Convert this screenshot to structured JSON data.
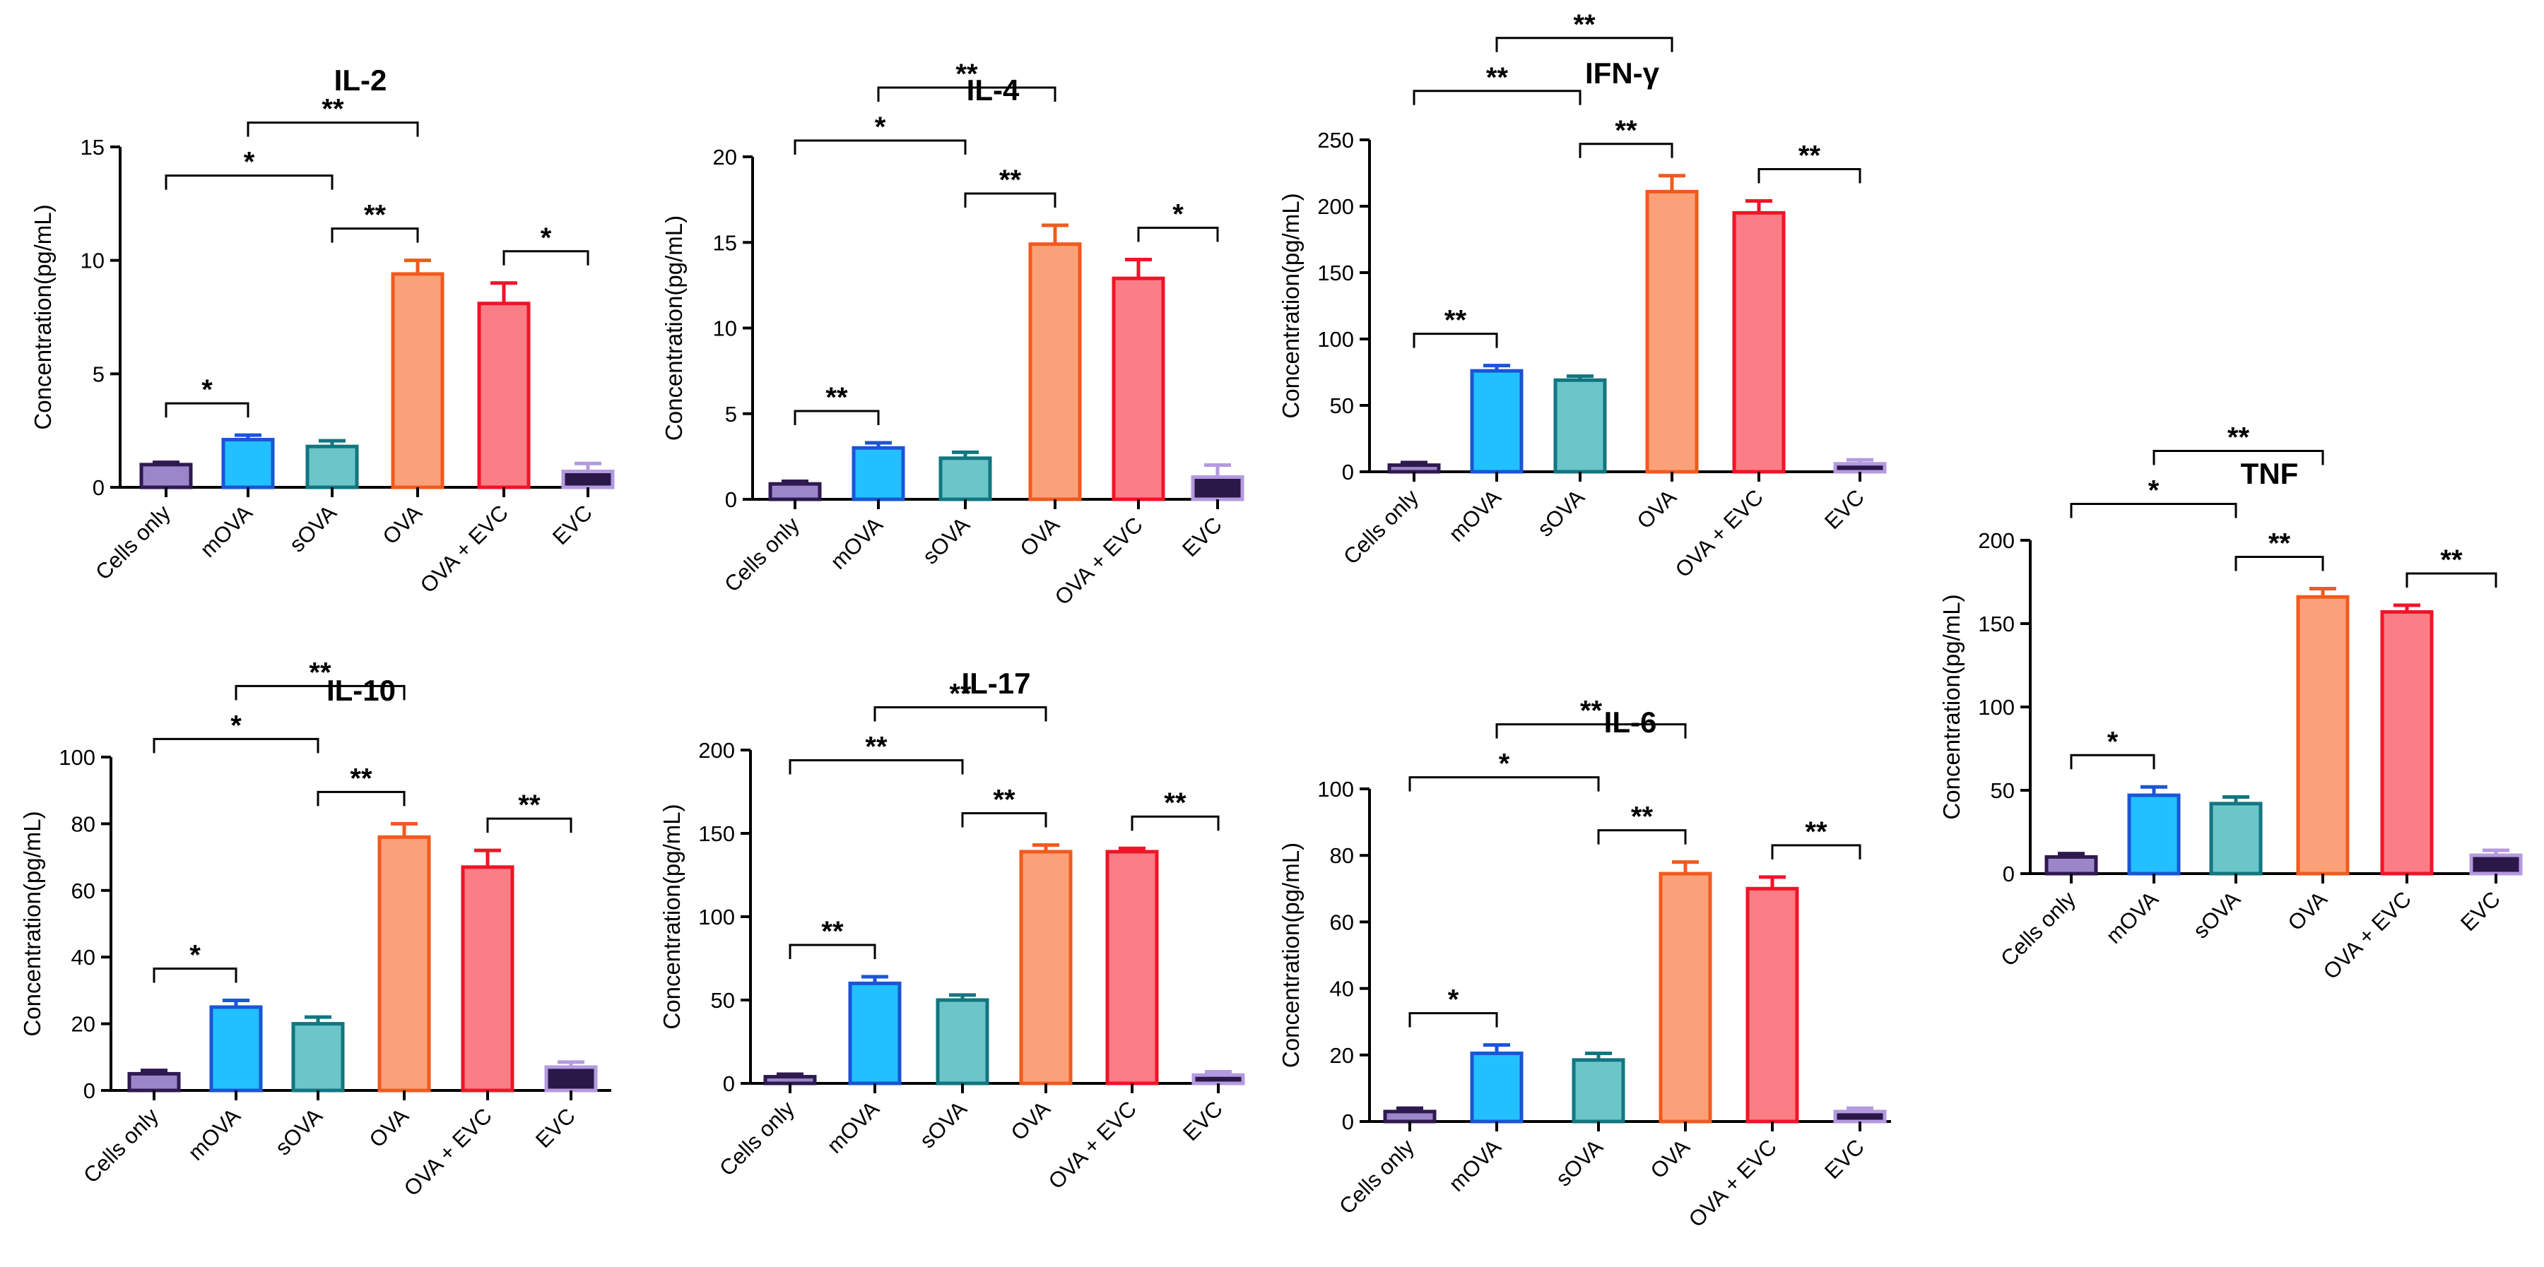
{
  "figure": {
    "ylabel": "Concentration(pg/mL)",
    "categories": [
      "Cells only",
      "mOVA",
      "sOVA",
      "OVA",
      "OVA + EVC",
      "EVC"
    ],
    "colors": {
      "fills": [
        "#9a86c8",
        "#22c0ff",
        "#6cc5c9",
        "#fba17a",
        "#fb7d86",
        "#2a1848"
      ],
      "edges": [
        "#2e1a4f",
        "#1a55d6",
        "#127680",
        "#f05a1e",
        "#f01428",
        "#b49ae0"
      ]
    }
  },
  "chart_data": [
    {
      "type": "bar",
      "title": "IL-2",
      "xlabel": "",
      "ylabel": "Concentration(pg/mL)",
      "categories": [
        "Cells only",
        "mOVA",
        "sOVA",
        "OVA",
        "OVA + EVC",
        "EVC"
      ],
      "values": [
        1.0,
        2.1,
        1.8,
        9.4,
        8.1,
        0.7
      ],
      "errors": [
        0.1,
        0.2,
        0.25,
        0.6,
        0.9,
        0.35
      ],
      "ylim": [
        0,
        15
      ],
      "yticks": [
        0,
        5,
        10,
        15
      ],
      "ytick_labels": [
        "0",
        "5",
        "10",
        "15"
      ],
      "brackets": [
        {
          "from": 0,
          "to": 1,
          "label": "*"
        },
        {
          "from": 0,
          "to": 2,
          "label": "*"
        },
        {
          "from": 1,
          "to": 3,
          "label": "**"
        },
        {
          "from": 2,
          "to": 3,
          "label": "**"
        },
        {
          "from": 4,
          "to": 5,
          "label": "*"
        }
      ]
    },
    {
      "type": "bar",
      "title": "IL-4",
      "xlabel": "",
      "ylabel": "Concentration(pg/mL)",
      "categories": [
        "Cells only",
        "mOVA",
        "sOVA",
        "OVA",
        "OVA + EVC",
        "EVC"
      ],
      "values": [
        0.9,
        3.0,
        2.4,
        14.9,
        12.9,
        1.3
      ],
      "errors": [
        0.15,
        0.3,
        0.35,
        1.1,
        1.1,
        0.7
      ],
      "ylim": [
        0,
        20
      ],
      "yticks": [
        0,
        5,
        10,
        15,
        20
      ],
      "ytick_labels": [
        "0",
        "5",
        "10",
        "15",
        "20"
      ],
      "brackets": [
        {
          "from": 0,
          "to": 1,
          "label": "**"
        },
        {
          "from": 0,
          "to": 2,
          "label": "*"
        },
        {
          "from": 1,
          "to": 3,
          "label": "**"
        },
        {
          "from": 2,
          "to": 3,
          "label": "**"
        },
        {
          "from": 4,
          "to": 5,
          "label": "*"
        }
      ]
    },
    {
      "type": "bar",
      "title": "IFN-γ",
      "xlabel": "",
      "ylabel": "Concentration(pg/mL)",
      "categories": [
        "Cells only",
        "mOVA",
        "sOVA",
        "OVA",
        "OVA + EVC",
        "EVC"
      ],
      "values": [
        5,
        76,
        69,
        211,
        195,
        6
      ],
      "errors": [
        2,
        4,
        3,
        12,
        9,
        3
      ],
      "ylim": [
        0,
        250
      ],
      "yticks": [
        0,
        50,
        100,
        150,
        200,
        250
      ],
      "ytick_labels": [
        "0",
        "50",
        "100",
        "150",
        "200",
        "250"
      ],
      "brackets": [
        {
          "from": 0,
          "to": 1,
          "label": "**"
        },
        {
          "from": 0,
          "to": 2,
          "label": "**"
        },
        {
          "from": 1,
          "to": 3,
          "label": "**"
        },
        {
          "from": 2,
          "to": 3,
          "label": "**"
        },
        {
          "from": 4,
          "to": 5,
          "label": "**"
        }
      ]
    },
    {
      "type": "bar",
      "title": "TNF",
      "xlabel": "",
      "ylabel": "Concentration(pg/mL)",
      "categories": [
        "Cells only",
        "mOVA",
        "sOVA",
        "OVA",
        "OVA + EVC",
        "EVC"
      ],
      "values": [
        10,
        47,
        42,
        166,
        157,
        11
      ],
      "errors": [
        2,
        5,
        4,
        5,
        4,
        3
      ],
      "ylim": [
        0,
        200
      ],
      "yticks": [
        0,
        50,
        100,
        150,
        200
      ],
      "ytick_labels": [
        "0",
        "50",
        "100",
        "150",
        "200"
      ],
      "brackets": [
        {
          "from": 0,
          "to": 1,
          "label": "*"
        },
        {
          "from": 0,
          "to": 2,
          "label": "*"
        },
        {
          "from": 1,
          "to": 3,
          "label": "**"
        },
        {
          "from": 2,
          "to": 3,
          "label": "**"
        },
        {
          "from": 4,
          "to": 5,
          "label": "**"
        }
      ]
    },
    {
      "type": "bar",
      "title": "IL-10",
      "xlabel": "",
      "ylabel": "Concentration(pg/mL)",
      "categories": [
        "Cells only",
        "mOVA",
        "sOVA",
        "OVA",
        "OVA + EVC",
        "EVC"
      ],
      "values": [
        5,
        25,
        20,
        76,
        67,
        7
      ],
      "errors": [
        1,
        2,
        2,
        4,
        5,
        1.5
      ],
      "ylim": [
        0,
        100
      ],
      "yticks": [
        0,
        20,
        40,
        60,
        80,
        100
      ],
      "ytick_labels": [
        "0",
        "20",
        "40",
        "60",
        "80",
        "100"
      ],
      "brackets": [
        {
          "from": 0,
          "to": 1,
          "label": "*"
        },
        {
          "from": 0,
          "to": 2,
          "label": "*"
        },
        {
          "from": 1,
          "to": 3,
          "label": "**"
        },
        {
          "from": 2,
          "to": 3,
          "label": "**"
        },
        {
          "from": 4,
          "to": 5,
          "label": "**"
        }
      ]
    },
    {
      "type": "bar",
      "title": "IL-17",
      "xlabel": "",
      "ylabel": "Concentration(pg/mL)",
      "categories": [
        "Cells only",
        "mOVA",
        "sOVA",
        "OVA",
        "OVA + EVC",
        "EVC"
      ],
      "values": [
        4,
        60,
        50,
        139,
        139,
        5
      ],
      "errors": [
        1.5,
        4,
        3,
        4,
        2,
        2
      ],
      "ylim": [
        0,
        200
      ],
      "yticks": [
        0,
        50,
        100,
        150,
        200
      ],
      "ytick_labels": [
        "0",
        "50",
        "100",
        "150",
        "200"
      ],
      "brackets": [
        {
          "from": 0,
          "to": 1,
          "label": "**"
        },
        {
          "from": 0,
          "to": 2,
          "label": "**"
        },
        {
          "from": 1,
          "to": 3,
          "label": "**"
        },
        {
          "from": 2,
          "to": 3,
          "label": "**"
        },
        {
          "from": 4,
          "to": 5,
          "label": "**"
        }
      ]
    },
    {
      "type": "bar",
      "title": "IL-6",
      "xlabel": "",
      "ylabel": "Concentration(pg/mL)",
      "categories": [
        "Cells only",
        "mOVA",
        "sOVA",
        "OVA",
        "OVA + EVC",
        "EVC"
      ],
      "values": [
        3,
        20.5,
        18.5,
        74.5,
        70,
        3
      ],
      "errors": [
        1,
        2.5,
        2,
        3.5,
        3.5,
        1
      ],
      "ylim": [
        0,
        100
      ],
      "yticks": [
        0,
        20,
        40,
        60,
        80,
        100
      ],
      "ytick_labels": [
        "0",
        "20",
        "40",
        "60",
        "80",
        "100"
      ],
      "brackets": [
        {
          "from": 0,
          "to": 1,
          "label": "*"
        },
        {
          "from": 0,
          "to": 2,
          "label": "*"
        },
        {
          "from": 1,
          "to": 3,
          "label": "**"
        },
        {
          "from": 2,
          "to": 3,
          "label": "**"
        },
        {
          "from": 4,
          "to": 5,
          "label": "**"
        }
      ]
    }
  ]
}
